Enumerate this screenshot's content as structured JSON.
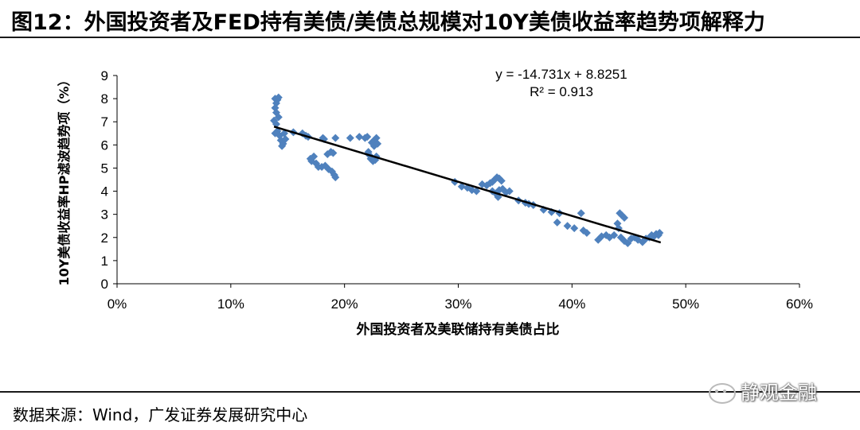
{
  "figure": {
    "title": "图12：外国投资者及FED持有美债/美债总规模对10Y美债收益率趋势项解释力",
    "source": "数据来源：Wind，广发证券发展研究中心",
    "watermark": "静观金融"
  },
  "chart_data": {
    "type": "scatter",
    "xlabel": "外国投资者及美联储持有美债占比",
    "ylabel": "10Y美债收益率HP滤波趋势项（%）",
    "xlim": [
      0,
      0.6
    ],
    "ylim": [
      0,
      9
    ],
    "x_ticks": [
      0,
      0.1,
      0.2,
      0.3,
      0.4,
      0.5,
      0.6
    ],
    "x_tick_labels": [
      "0%",
      "10%",
      "20%",
      "30%",
      "40%",
      "50%",
      "60%"
    ],
    "y_ticks": [
      0,
      1,
      2,
      3,
      4,
      5,
      6,
      7,
      8,
      9
    ],
    "y_tick_labels": [
      "0",
      "1",
      "2",
      "3",
      "4",
      "5",
      "6",
      "7",
      "8",
      "9"
    ],
    "grid": false,
    "marker_color": "#4f81bd",
    "trendline_color": "#000000",
    "trendline": {
      "slope": -14.731,
      "intercept": 8.8251,
      "x_range": [
        0.138,
        0.478
      ]
    },
    "annotations": [
      "y = -14.731x + 8.8251",
      "R² = 0.913"
    ],
    "points": [
      [
        0.139,
        8.0
      ],
      [
        0.141,
        7.95
      ],
      [
        0.14,
        7.8
      ],
      [
        0.142,
        8.05
      ],
      [
        0.139,
        7.6
      ],
      [
        0.14,
        7.4
      ],
      [
        0.142,
        7.2
      ],
      [
        0.138,
        7.05
      ],
      [
        0.14,
        6.9
      ],
      [
        0.141,
        6.6
      ],
      [
        0.139,
        6.5
      ],
      [
        0.143,
        6.4
      ],
      [
        0.144,
        6.2
      ],
      [
        0.146,
        6.05
      ],
      [
        0.145,
        5.95
      ],
      [
        0.148,
        6.25
      ],
      [
        0.147,
        6.5
      ],
      [
        0.155,
        6.55
      ],
      [
        0.163,
        6.5
      ],
      [
        0.166,
        6.4
      ],
      [
        0.168,
        6.35
      ],
      [
        0.17,
        5.4
      ],
      [
        0.171,
        5.3
      ],
      [
        0.173,
        5.5
      ],
      [
        0.175,
        5.2
      ],
      [
        0.177,
        5.05
      ],
      [
        0.181,
        6.3
      ],
      [
        0.182,
        6.25
      ],
      [
        0.185,
        5.6
      ],
      [
        0.188,
        5.7
      ],
      [
        0.19,
        5.65
      ],
      [
        0.18,
        5.05
      ],
      [
        0.183,
        5.1
      ],
      [
        0.186,
        4.95
      ],
      [
        0.189,
        4.85
      ],
      [
        0.191,
        4.7
      ],
      [
        0.192,
        4.6
      ],
      [
        0.192,
        6.3
      ],
      [
        0.205,
        6.3
      ],
      [
        0.213,
        6.35
      ],
      [
        0.218,
        6.3
      ],
      [
        0.22,
        6.35
      ],
      [
        0.224,
        6.1
      ],
      [
        0.226,
        5.95
      ],
      [
        0.221,
        5.7
      ],
      [
        0.223,
        5.4
      ],
      [
        0.225,
        5.3
      ],
      [
        0.227,
        5.35
      ],
      [
        0.228,
        5.5
      ],
      [
        0.226,
        6.2
      ],
      [
        0.228,
        6.3
      ],
      [
        0.229,
        6.05
      ],
      [
        0.222,
        5.55
      ],
      [
        0.297,
        4.4
      ],
      [
        0.303,
        4.2
      ],
      [
        0.308,
        4.15
      ],
      [
        0.312,
        4.05
      ],
      [
        0.316,
        4.0
      ],
      [
        0.321,
        4.3
      ],
      [
        0.325,
        4.25
      ],
      [
        0.328,
        4.35
      ],
      [
        0.33,
        4.4
      ],
      [
        0.332,
        4.5
      ],
      [
        0.334,
        4.6
      ],
      [
        0.336,
        4.55
      ],
      [
        0.338,
        4.45
      ],
      [
        0.33,
        4.0
      ],
      [
        0.333,
        3.9
      ],
      [
        0.336,
        4.05
      ],
      [
        0.339,
        4.1
      ],
      [
        0.342,
        3.95
      ],
      [
        0.345,
        4.0
      ],
      [
        0.335,
        3.75
      ],
      [
        0.353,
        3.6
      ],
      [
        0.359,
        3.5
      ],
      [
        0.362,
        3.45
      ],
      [
        0.366,
        3.4
      ],
      [
        0.375,
        3.2
      ],
      [
        0.382,
        3.1
      ],
      [
        0.389,
        3.05
      ],
      [
        0.387,
        2.65
      ],
      [
        0.396,
        2.5
      ],
      [
        0.402,
        2.4
      ],
      [
        0.408,
        3.05
      ],
      [
        0.41,
        2.3
      ],
      [
        0.413,
        2.2
      ],
      [
        0.423,
        1.9
      ],
      [
        0.426,
        2.05
      ],
      [
        0.43,
        2.1
      ],
      [
        0.433,
        2.0
      ],
      [
        0.437,
        2.1
      ],
      [
        0.44,
        2.6
      ],
      [
        0.442,
        3.05
      ],
      [
        0.444,
        2.95
      ],
      [
        0.446,
        2.85
      ],
      [
        0.441,
        2.4
      ],
      [
        0.443,
        2.0
      ],
      [
        0.446,
        1.85
      ],
      [
        0.449,
        1.75
      ],
      [
        0.452,
        1.95
      ],
      [
        0.455,
        2.0
      ],
      [
        0.458,
        1.9
      ],
      [
        0.462,
        1.8
      ],
      [
        0.465,
        1.95
      ],
      [
        0.468,
        2.0
      ],
      [
        0.47,
        2.1
      ],
      [
        0.472,
        2.05
      ],
      [
        0.474,
        2.15
      ],
      [
        0.476,
        2.1
      ],
      [
        0.477,
        2.2
      ]
    ]
  }
}
